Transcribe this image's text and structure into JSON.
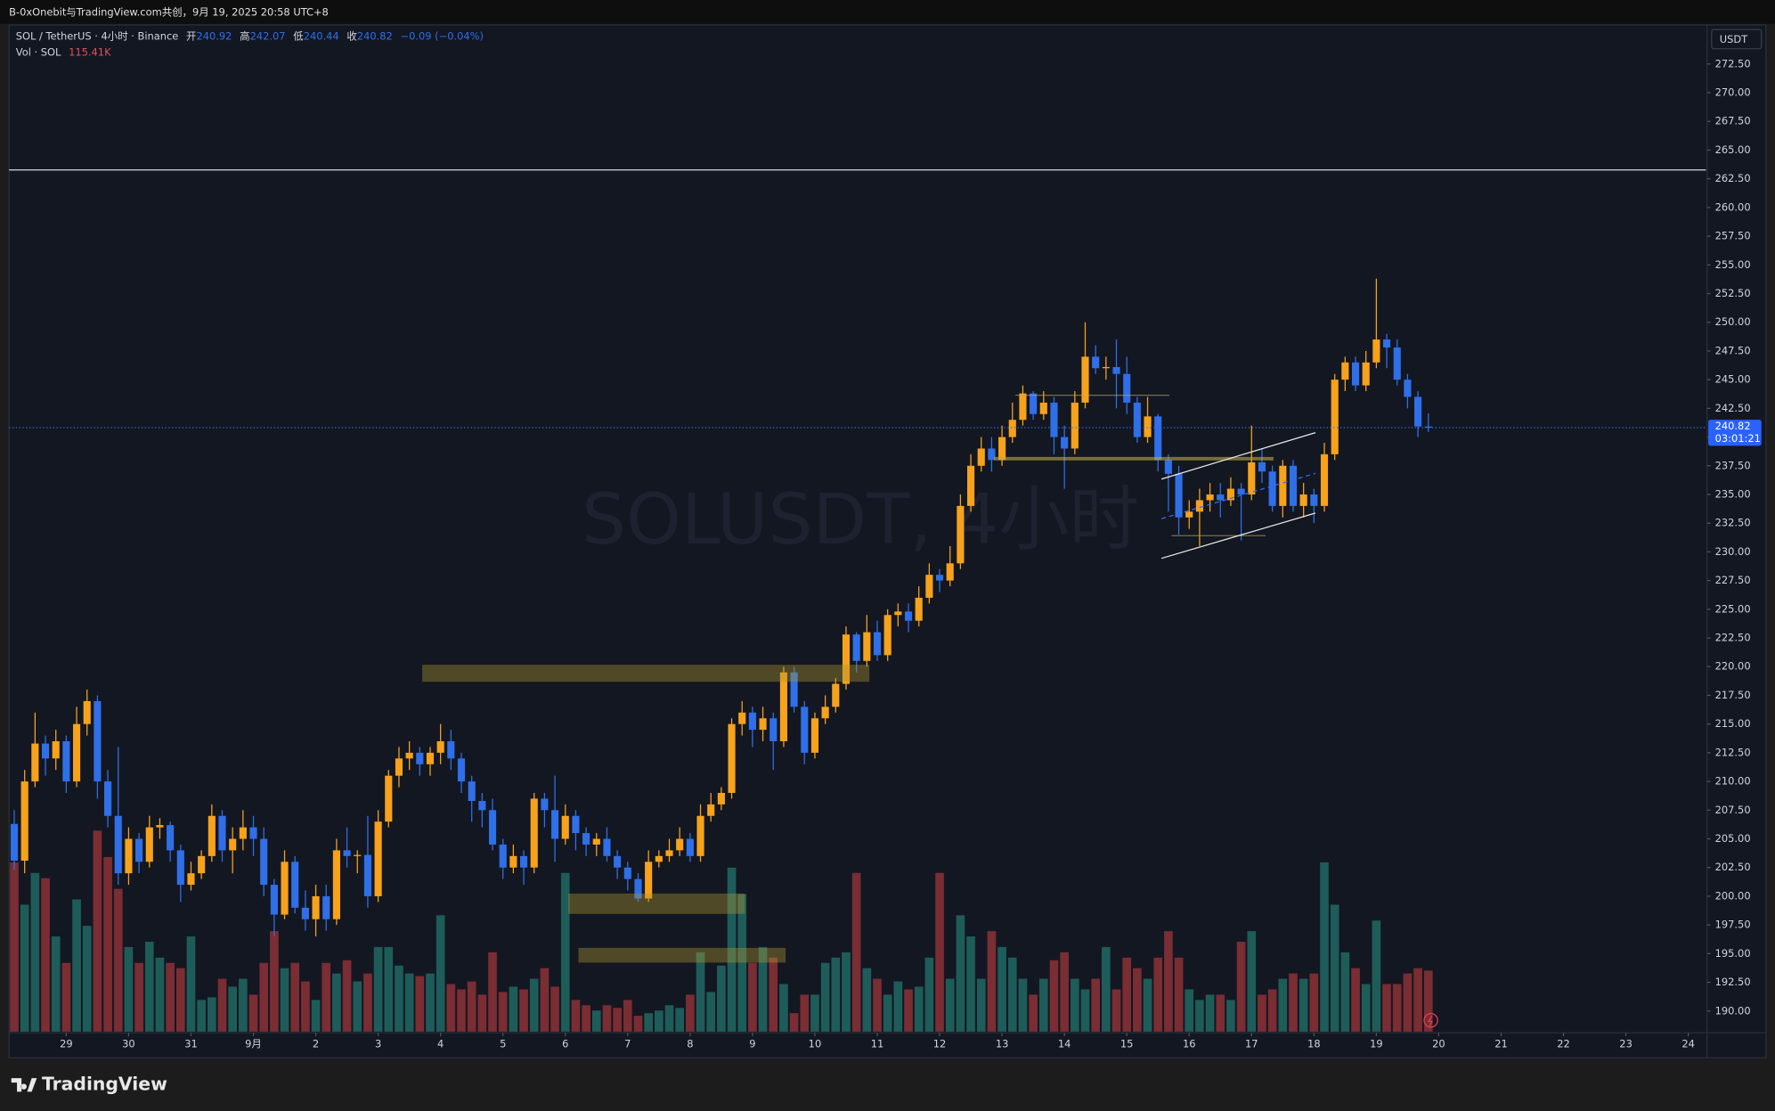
{
  "header": {
    "text": "B-0xOnebit与TradingView.com共创，9月 19, 2025 20:58 UTC+8"
  },
  "branding": {
    "logo": "TradingView"
  },
  "chart_data": {
    "type": "candlestick",
    "title": "SOL / TetherUS · 4小时 · Binance",
    "open_label": "开",
    "high_label": "高",
    "low_label": "低",
    "close_label": "收",
    "change_label": "−0.09 (−0.04%)",
    "volume_title": "Vol · SOL",
    "last_volume_label": "115.41K",
    "watermark": "SOLUSDT, 4小时",
    "currency": "USDT",
    "countdown": "03:01:21",
    "up_color": "#f7a21b",
    "down_color": "#2f6fe8",
    "volume_up_color": "#1e5c59",
    "volume_down_color": "#7a2d33",
    "open": [
      206.3,
      203.1,
      210,
      213.3,
      212,
      213.5,
      210,
      215,
      217,
      210,
      207,
      202,
      205,
      203,
      206,
      206.2,
      204,
      201,
      202,
      203.5,
      207,
      204,
      205,
      206,
      205,
      201,
      198.4,
      203,
      199,
      198,
      200,
      198,
      204,
      203.5,
      203.6,
      200,
      206.5,
      210.5,
      212,
      212.5,
      211.5,
      212.5,
      213.5,
      212,
      210,
      208.3,
      207.5,
      204.5,
      202.5,
      203.5,
      202.5,
      208.5,
      207.5,
      205,
      207,
      205.5,
      204.5,
      205,
      203.5,
      202.5,
      201.5,
      199.8,
      203,
      203.5,
      204,
      205,
      203.5,
      207,
      208,
      209,
      215,
      216,
      214.5,
      215.5,
      213.5,
      219.5,
      216.5,
      212.5,
      215.5,
      216.5,
      218.5,
      222.8,
      220.5,
      223,
      221,
      224.5,
      224.8,
      224,
      226,
      228,
      227.5,
      229,
      234,
      237.5,
      239,
      238,
      240,
      241.5,
      243.8,
      242,
      243,
      240,
      239,
      243,
      247,
      246,
      246.1,
      245.5,
      243,
      240,
      241.8,
      238,
      236.8,
      233,
      233.5,
      234.5,
      235,
      234.5,
      235.5,
      235,
      237.8,
      237,
      234,
      237.5,
      234,
      235,
      234,
      238.5,
      245,
      246.5,
      244.5,
      246.5,
      248.5,
      247.8,
      245,
      243.5,
      240.92
    ],
    "high": [
      207.5,
      211,
      216,
      214,
      214.5,
      214,
      216.5,
      218,
      217.5,
      211,
      213,
      206,
      205.5,
      207,
      206.8,
      206.5,
      204.5,
      203,
      204,
      208,
      207.5,
      206,
      207.5,
      207,
      206,
      201.5,
      204,
      203.5,
      200.5,
      201,
      201,
      205,
      206,
      204,
      207,
      207.5,
      211,
      213,
      213.5,
      213,
      213,
      215,
      214.5,
      212.5,
      210.5,
      209,
      208.5,
      205,
      204.5,
      204,
      209,
      209,
      210.5,
      208,
      207.5,
      206,
      205.5,
      206,
      204,
      203,
      202,
      204,
      204,
      205,
      206,
      205.5,
      208,
      209,
      209.5,
      215.5,
      217,
      216.5,
      216.5,
      216,
      220,
      220,
      217,
      216,
      217.5,
      219,
      223.5,
      223,
      224.5,
      224,
      225,
      225.5,
      225.5,
      227,
      229,
      228.5,
      230.5,
      235,
      238.5,
      240,
      240,
      241,
      243,
      244.5,
      244,
      244,
      243.5,
      241,
      244,
      250,
      248,
      247,
      248.5,
      247,
      243.5,
      243.5,
      242,
      238.5,
      237.5,
      234.5,
      235.5,
      236,
      236,
      236.5,
      236,
      241,
      239,
      237.5,
      238,
      238,
      236,
      235.5,
      239.5,
      245.5,
      247,
      247,
      247.5,
      253.8,
      249,
      248.5,
      245.5,
      244,
      242.07
    ],
    "low": [
      202.3,
      202,
      209.5,
      210.5,
      211,
      209,
      209.5,
      214,
      208.5,
      206,
      201,
      201,
      202,
      202.5,
      205,
      203,
      199.5,
      200.5,
      201.5,
      203,
      203,
      202,
      204,
      203.5,
      200,
      196.5,
      198,
      198.5,
      197,
      196.5,
      197,
      197.5,
      202.5,
      202,
      199,
      199.5,
      206,
      209.5,
      211,
      210.5,
      210.5,
      211.5,
      211,
      209,
      206.5,
      206,
      204,
      201.5,
      202,
      201,
      202,
      206,
      203,
      204.5,
      204,
      203.5,
      203.5,
      203,
      201.5,
      200.5,
      199.5,
      199.5,
      202.5,
      203,
      203.5,
      203,
      203,
      206.5,
      207.5,
      208.5,
      214,
      213,
      213.5,
      211,
      213,
      216,
      211.5,
      212,
      215,
      216,
      218,
      219.5,
      220,
      220.5,
      220.5,
      223.5,
      223,
      223.5,
      225.5,
      226.5,
      227,
      228.5,
      233.5,
      237,
      237,
      237.5,
      239.5,
      241,
      241.5,
      241.5,
      238.5,
      235.5,
      238.5,
      242.5,
      245.5,
      245,
      242.5,
      242,
      239.5,
      239.5,
      237,
      233.5,
      231.5,
      232,
      230.5,
      233.5,
      233,
      234,
      231,
      234.5,
      236,
      233.5,
      233,
      233.5,
      233,
      232.5,
      233.5,
      238,
      244,
      244,
      244,
      246,
      246,
      244.5,
      242.5,
      240,
      240.44
    ],
    "close": [
      203.1,
      210,
      213.3,
      212,
      213.5,
      210,
      215,
      217,
      210,
      207,
      202,
      205,
      203,
      206,
      206.2,
      204,
      201,
      202,
      203.5,
      207,
      204,
      205,
      206,
      205,
      201,
      198.4,
      203,
      199,
      198,
      200,
      198,
      204,
      203.5,
      203.6,
      200,
      206.5,
      210.5,
      212,
      212.5,
      211.5,
      212.5,
      213.5,
      212,
      210,
      208.3,
      207.5,
      204.5,
      202.5,
      203.5,
      202.5,
      208.5,
      207.5,
      205,
      207,
      205.5,
      204.5,
      205,
      203.5,
      202.5,
      201.5,
      199.8,
      203,
      203.5,
      204,
      205,
      203.5,
      207,
      208,
      209,
      215,
      216,
      214.5,
      215.5,
      213.5,
      219.5,
      216.5,
      212.5,
      215.5,
      216.5,
      218.5,
      222.8,
      220.5,
      223,
      221,
      224.5,
      224.8,
      224,
      226,
      228,
      227.5,
      229,
      234,
      237.5,
      239,
      238,
      240,
      241.5,
      243.8,
      242,
      243,
      240,
      239,
      243,
      247,
      246,
      246.1,
      245.5,
      243,
      240,
      241.8,
      238,
      236.8,
      233,
      233.5,
      234.5,
      235,
      234.5,
      235.5,
      235,
      237.8,
      237,
      234,
      237.5,
      234,
      235,
      234,
      238.5,
      245,
      246.5,
      244.5,
      246.5,
      248.5,
      247.8,
      245,
      243.5,
      240.92,
      240.82
    ],
    "volume": [
      320,
      240,
      300,
      290,
      180,
      130,
      250,
      200,
      380,
      330,
      270,
      160,
      130,
      170,
      140,
      130,
      120,
      180,
      60,
      65,
      100,
      85,
      100,
      70,
      130,
      190,
      120,
      130,
      95,
      60,
      130,
      110,
      135,
      95,
      110,
      160,
      160,
      125,
      110,
      105,
      110,
      220,
      90,
      80,
      95,
      70,
      150,
      75,
      85,
      80,
      100,
      120,
      85,
      300,
      60,
      50,
      40,
      50,
      45,
      60,
      30,
      35,
      40,
      50,
      45,
      70,
      150,
      75,
      125,
      310,
      260,
      130,
      160,
      140,
      90,
      35,
      70,
      70,
      130,
      140,
      150,
      300,
      120,
      100,
      70,
      95,
      80,
      85,
      140,
      300,
      100,
      220,
      180,
      100,
      190,
      160,
      140,
      100,
      70,
      100,
      135,
      150,
      100,
      80,
      100,
      160,
      80,
      140,
      120,
      100,
      140,
      190,
      140,
      80,
      60,
      70,
      70,
      60,
      170,
      190,
      70,
      80,
      100,
      110,
      100,
      110,
      320,
      240,
      150,
      120,
      90,
      210,
      90,
      90,
      110,
      120,
      115.41
    ],
    "xlim": [
      -0.5,
      162.7
    ],
    "xticks": [
      {
        "value": 5,
        "label": "29"
      },
      {
        "value": 11,
        "label": "30"
      },
      {
        "value": 17,
        "label": "31"
      },
      {
        "value": 23,
        "label": "9月"
      },
      {
        "value": 29,
        "label": "2"
      },
      {
        "value": 35,
        "label": "3"
      },
      {
        "value": 41,
        "label": "4"
      },
      {
        "value": 47,
        "label": "5"
      },
      {
        "value": 53,
        "label": "6"
      },
      {
        "value": 59,
        "label": "7"
      },
      {
        "value": 65,
        "label": "8"
      },
      {
        "value": 71,
        "label": "9"
      },
      {
        "value": 77,
        "label": "10"
      },
      {
        "value": 83,
        "label": "11"
      },
      {
        "value": 89,
        "label": "12"
      },
      {
        "value": 95,
        "label": "13"
      },
      {
        "value": 101,
        "label": "14"
      },
      {
        "value": 107,
        "label": "15"
      },
      {
        "value": 113,
        "label": "16"
      },
      {
        "value": 119,
        "label": "17"
      },
      {
        "value": 125,
        "label": "18"
      },
      {
        "value": 131,
        "label": "19"
      },
      {
        "value": 137,
        "label": "20"
      },
      {
        "value": 143,
        "label": "21"
      },
      {
        "value": 149,
        "label": "22"
      },
      {
        "value": 155,
        "label": "23"
      },
      {
        "value": 161,
        "label": "24"
      }
    ],
    "ylim": [
      188.2,
      275.9
    ],
    "yticks": [
      {
        "value": 190,
        "label": "190.00"
      },
      {
        "value": 192.5,
        "label": "192.50"
      },
      {
        "value": 195,
        "label": "195.00"
      },
      {
        "value": 197.5,
        "label": "197.50"
      },
      {
        "value": 200,
        "label": "200.00"
      },
      {
        "value": 202.5,
        "label": "202.50"
      },
      {
        "value": 205,
        "label": "205.00"
      },
      {
        "value": 207.5,
        "label": "207.50"
      },
      {
        "value": 210,
        "label": "210.00"
      },
      {
        "value": 212.5,
        "label": "212.50"
      },
      {
        "value": 215,
        "label": "215.00"
      },
      {
        "value": 217.5,
        "label": "217.50"
      },
      {
        "value": 220,
        "label": "220.00"
      },
      {
        "value": 222.5,
        "label": "222.50"
      },
      {
        "value": 225,
        "label": "225.00"
      },
      {
        "value": 227.5,
        "label": "227.50"
      },
      {
        "value": 230,
        "label": "230.00"
      },
      {
        "value": 232.5,
        "label": "232.50"
      },
      {
        "value": 235,
        "label": "235.00"
      },
      {
        "value": 237.5,
        "label": "237.50"
      },
      {
        "value": 240,
        "label": "240.00"
      },
      {
        "value": 242.5,
        "label": "242.50"
      },
      {
        "value": 245,
        "label": "245.00"
      },
      {
        "value": 247.5,
        "label": "247.50"
      },
      {
        "value": 250,
        "label": "250.00"
      },
      {
        "value": 252.5,
        "label": "252.50"
      },
      {
        "value": 255,
        "label": "255.00"
      },
      {
        "value": 257.5,
        "label": "257.50"
      },
      {
        "value": 260,
        "label": "260.00"
      },
      {
        "value": 262.5,
        "label": "262.50"
      },
      {
        "value": 265,
        "label": "265.00"
      },
      {
        "value": 267.5,
        "label": "267.50"
      },
      {
        "value": 270,
        "label": "270.00"
      },
      {
        "value": 272.5,
        "label": "272.50"
      }
    ]
  }
}
